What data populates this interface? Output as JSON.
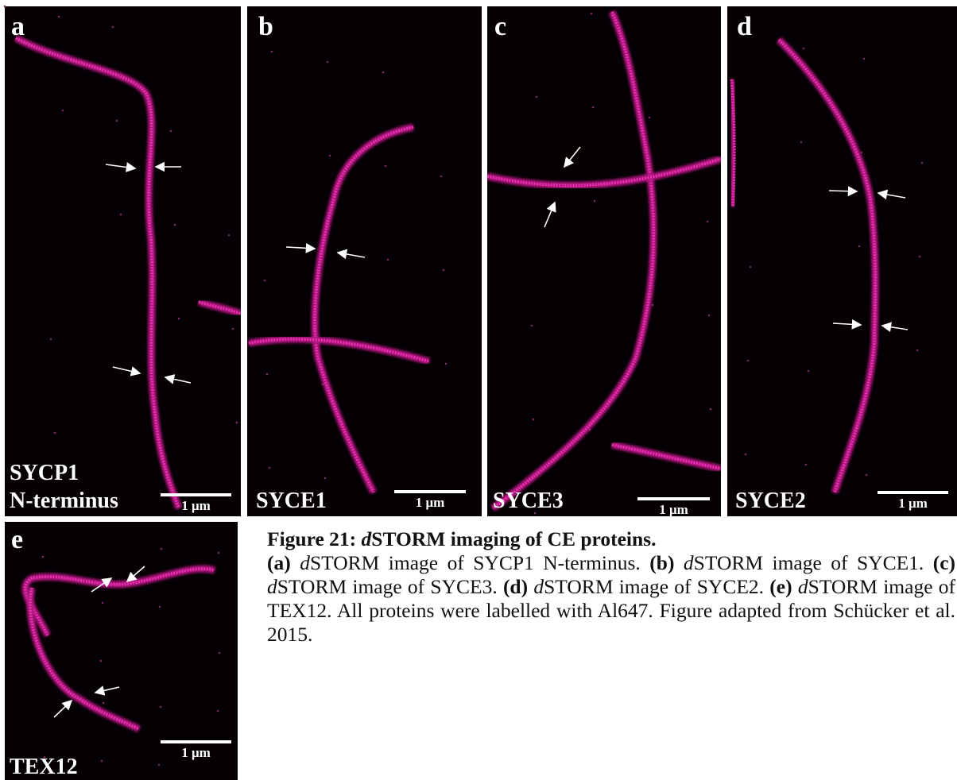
{
  "figure": {
    "panels": [
      {
        "letter": "a",
        "label": [
          "SYCP1",
          "N-terminus"
        ],
        "scale": "1 μm"
      },
      {
        "letter": "b",
        "label": [
          "SYCE1"
        ],
        "scale": "1 μm"
      },
      {
        "letter": "c",
        "label": [
          "SYCE3"
        ],
        "scale": "1 μm"
      },
      {
        "letter": "d",
        "label": [
          "SYCE2"
        ],
        "scale": "1 μm"
      },
      {
        "letter": "e",
        "label": [
          "TEX12"
        ],
        "scale": "1 μm"
      }
    ]
  },
  "caption": {
    "title": [
      "Figure 21: ",
      "d",
      "STORM imaging of CE proteins."
    ],
    "items": [
      {
        "letter": "(a)",
        "prefix": "d",
        "rest": "STORM image of SYCP1 N-terminus."
      },
      {
        "letter": "(b)",
        "prefix": "d",
        "rest": "STORM image of SYCE1."
      },
      {
        "letter": "(c)",
        "prefix": "d",
        "rest": "STORM image of SYCE3."
      },
      {
        "letter": "(d)",
        "prefix": "d",
        "rest": "STORM image of SYCE2."
      },
      {
        "letter": "(e)",
        "prefix": "d",
        "rest": "STORM image of TEX12."
      }
    ],
    "closing": "All proteins were labelled with Al647. Figure adapted from Schücker et al. 2015."
  }
}
